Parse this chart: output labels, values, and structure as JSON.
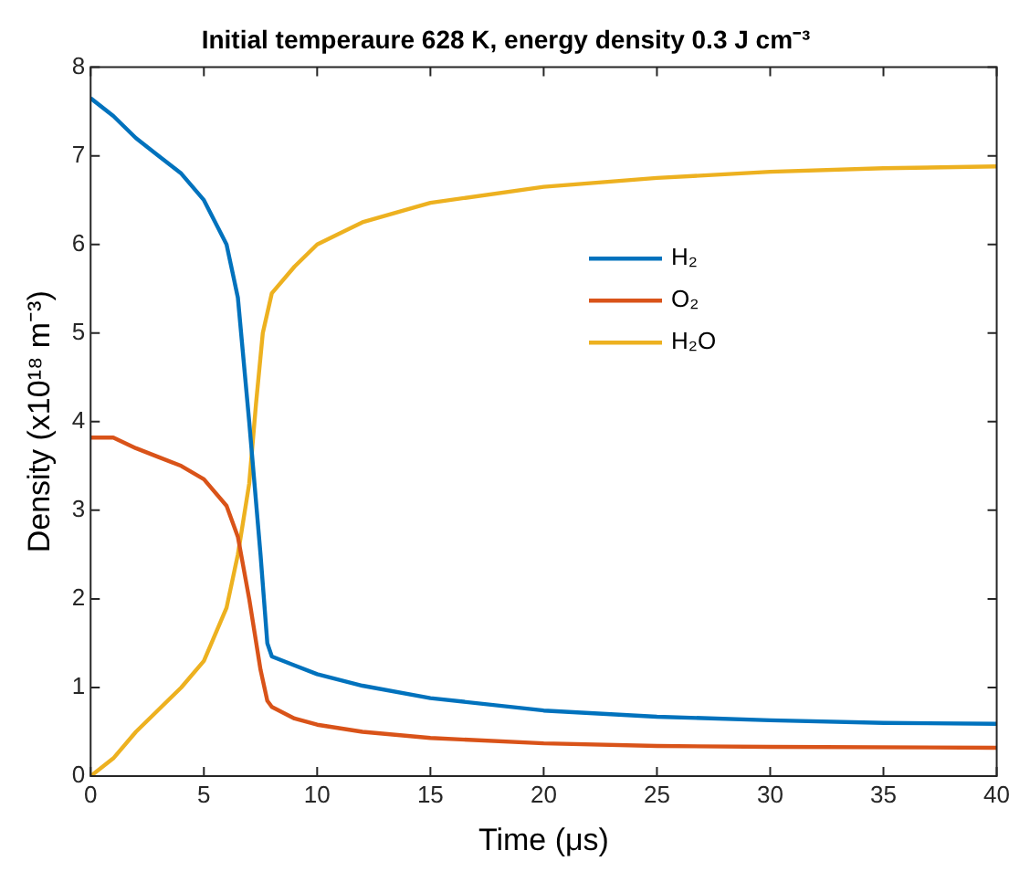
{
  "chart_data": {
    "type": "line",
    "title": "Initial temperaure 628 K, energy density 0.3 J cm⁻³",
    "xlabel": "Time (μs)",
    "ylabel": "Density (x10¹⁸ m⁻³)",
    "xlim": [
      0,
      40
    ],
    "ylim": [
      0,
      8
    ],
    "xticks": [
      0,
      5,
      10,
      15,
      20,
      25,
      30,
      35,
      40
    ],
    "yticks": [
      0,
      1,
      2,
      3,
      4,
      5,
      6,
      7,
      8
    ],
    "grid": false,
    "legend": "top right",
    "marker": "none",
    "line_style": "solid",
    "series": [
      {
        "name": "H₂",
        "color": "#0072bd",
        "x": [
          0,
          1,
          2,
          3,
          4,
          5,
          6,
          6.5,
          7,
          7.5,
          7.8,
          8,
          9,
          10,
          12,
          15,
          20,
          25,
          30,
          35,
          40
        ],
        "values": [
          7.65,
          7.45,
          7.2,
          7.0,
          6.8,
          6.5,
          6.0,
          5.4,
          4.0,
          2.5,
          1.5,
          1.35,
          1.25,
          1.15,
          1.02,
          0.88,
          0.74,
          0.67,
          0.63,
          0.6,
          0.59
        ]
      },
      {
        "name": "O₂",
        "color": "#d95319",
        "x": [
          0,
          1,
          2,
          3,
          4,
          5,
          6,
          6.5,
          7,
          7.5,
          7.8,
          8,
          9,
          10,
          12,
          15,
          20,
          25,
          30,
          40
        ],
        "values": [
          3.82,
          3.82,
          3.7,
          3.6,
          3.5,
          3.35,
          3.05,
          2.7,
          2.0,
          1.2,
          0.85,
          0.78,
          0.65,
          0.58,
          0.5,
          0.43,
          0.37,
          0.34,
          0.33,
          0.32
        ]
      },
      {
        "name": "H₂O",
        "color": "#edb120",
        "x": [
          0,
          1,
          2,
          3,
          4,
          5,
          6,
          6.5,
          7,
          7.3,
          7.6,
          8,
          9,
          10,
          12,
          15,
          20,
          25,
          30,
          35,
          40
        ],
        "values": [
          0,
          0.2,
          0.5,
          0.75,
          1.0,
          1.3,
          1.9,
          2.5,
          3.3,
          4.2,
          5.0,
          5.45,
          5.75,
          6.0,
          6.25,
          6.47,
          6.65,
          6.75,
          6.82,
          6.86,
          6.88
        ]
      }
    ]
  }
}
